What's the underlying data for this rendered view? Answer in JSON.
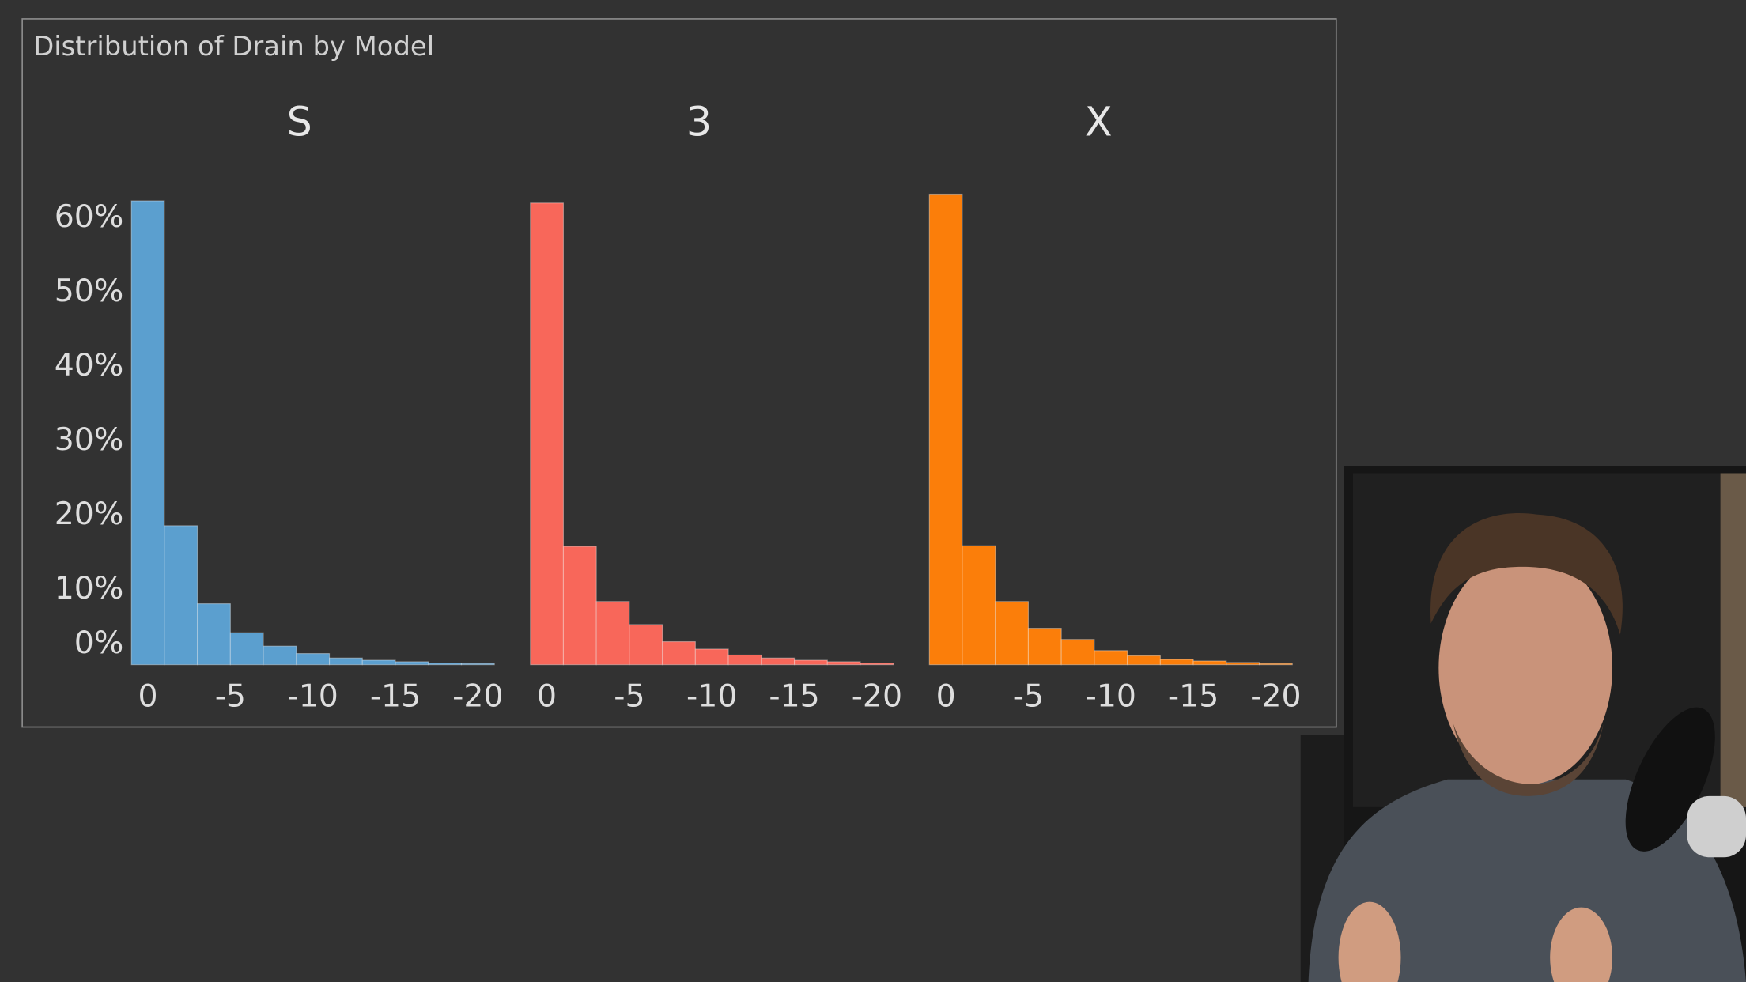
{
  "chart_data": {
    "type": "histogram",
    "title": "Distribution of Drain by Model",
    "bins": [
      1,
      -1,
      -3,
      -5,
      -7,
      -9,
      -11,
      -13,
      -15,
      -17,
      -19,
      -21
    ],
    "series": [
      {
        "name": "S",
        "color": "#5b9fcf",
        "values": [
          62.4,
          18.7,
          8.2,
          4.3,
          2.5,
          1.5,
          0.9,
          0.6,
          0.4,
          0.2,
          0.15
        ]
      },
      {
        "name": "3",
        "color": "#f8675a",
        "values": [
          62.1,
          15.9,
          8.5,
          5.4,
          3.1,
          2.1,
          1.3,
          0.9,
          0.6,
          0.4,
          0.2
        ]
      },
      {
        "name": "X",
        "color": "#fb7e0a",
        "values": [
          63.3,
          16.0,
          8.5,
          4.9,
          3.4,
          1.9,
          1.2,
          0.7,
          0.5,
          0.3,
          0.15
        ]
      }
    ],
    "xlim": [
      1,
      -21
    ],
    "xticks": [
      0,
      -5,
      -10,
      -15,
      -20
    ],
    "ylim": [
      0,
      65
    ],
    "yticks": [
      {
        "value": 0,
        "label": "0%"
      },
      {
        "value": 10,
        "label": "10%"
      },
      {
        "value": 20,
        "label": "20%"
      },
      {
        "value": 30,
        "label": "30%"
      },
      {
        "value": 40,
        "label": "40%"
      },
      {
        "value": 50,
        "label": "50%"
      },
      {
        "value": 60,
        "label": "60%"
      }
    ]
  }
}
